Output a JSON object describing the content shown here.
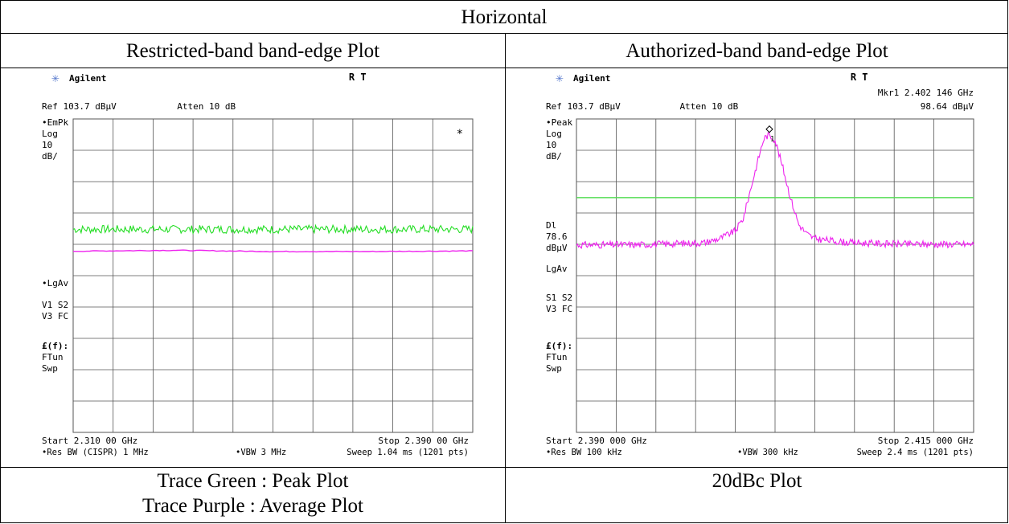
{
  "table": {
    "title": "Horizontal",
    "left_header": "Restricted-band band-edge Plot",
    "right_header": "Authorized-band band-edge Plot",
    "left_footer_line1": "Trace Green : Peak Plot",
    "left_footer_line2": "Trace Purple : Average Plot",
    "right_footer": "20dBc Plot"
  },
  "colors": {
    "peak_trace": "#22dd22",
    "avg_trace": "#ee22ee",
    "display_line": "#55dd55",
    "grid": "#555555",
    "logo_star": "#5577cc"
  },
  "left_plot": {
    "brand": "Agilent",
    "status": "R   T",
    "ref": "Ref 103.7 dBµV",
    "atten": "Atten 10 dB",
    "marker_line1": "",
    "marker_line2": "",
    "side_labels": [
      "•EmPk",
      "Log",
      "10",
      "dB/",
      "•LgAv",
      "V1  S2",
      "V3  FC",
      "£(f):",
      "FTun",
      "Swp"
    ],
    "start": "Start 2.310 00 GHz",
    "stop": "Stop 2.390 00 GHz",
    "res_bw": "•Res BW (CISPR) 1 MHz",
    "vbw": "•VBW 3 MHz",
    "sweep": "Sweep 1.04 ms (1201 pts)",
    "asterisk": "*"
  },
  "right_plot": {
    "brand": "Agilent",
    "status": "R   T",
    "ref": "Ref 103.7 dBµV",
    "atten": "Atten 10 dB",
    "marker_line1": "Mkr1  2.402 146 GHz",
    "marker_line2": "98.64 dBµV",
    "side_labels": [
      "•Peak",
      "Log",
      "10",
      "dB/",
      "Dl",
      "78.6",
      "dBµV",
      "LgAv",
      "S1  S2",
      "V3  FC",
      "£(f):",
      "FTun",
      "Swp"
    ],
    "start": "Start 2.390 000 GHz",
    "stop": "Stop 2.415 000 GHz",
    "res_bw": "•Res BW 100 kHz",
    "vbw": "•VBW 300 kHz",
    "sweep": "Sweep 2.4 ms (1201 pts)",
    "marker_label": "1"
  },
  "chart_data": [
    {
      "type": "line",
      "ref_level_dbuv": 103.7,
      "scale_db_per_div": 10,
      "ylim": [
        3.7,
        103.7
      ],
      "xlim_ghz": [
        2.31,
        2.39
      ],
      "grid": true,
      "series": [
        {
          "name": "Peak",
          "values": [
            [
              2.31,
              68.5
            ],
            [
              2.33,
              68.5
            ],
            [
              2.35,
              68.5
            ],
            [
              2.37,
              68.5
            ],
            [
              2.39,
              68.5
            ]
          ]
        },
        {
          "name": "Average",
          "values": [
            [
              2.31,
              61.5
            ],
            [
              2.33,
              61.8
            ],
            [
              2.35,
              61.4
            ],
            [
              2.37,
              61.4
            ],
            [
              2.39,
              61.6
            ]
          ]
        }
      ]
    },
    {
      "type": "line",
      "ref_level_dbuv": 103.7,
      "scale_db_per_div": 10,
      "ylim": [
        3.7,
        103.7
      ],
      "xlim_ghz": [
        2.39,
        2.415
      ],
      "grid": true,
      "display_line_dbuv": 78.6,
      "marker": {
        "x_ghz": 2.402146,
        "y_dbuv": 98.64
      },
      "series": [
        {
          "name": "Peak",
          "values": [
            [
              2.39,
              63.5
            ],
            [
              2.394,
              63.6
            ],
            [
              2.398,
              64.2
            ],
            [
              2.399,
              65.5
            ],
            [
              2.4,
              68.0
            ],
            [
              2.4005,
              72.0
            ],
            [
              2.401,
              82.0
            ],
            [
              2.4015,
              92.0
            ],
            [
              2.4018,
              97.5
            ],
            [
              2.4021,
              98.6
            ],
            [
              2.4025,
              97.0
            ],
            [
              2.403,
              88.0
            ],
            [
              2.4035,
              78.0
            ],
            [
              2.404,
              70.0
            ],
            [
              2.4045,
              67.0
            ],
            [
              2.405,
              65.5
            ],
            [
              2.407,
              64.3
            ],
            [
              2.41,
              63.8
            ],
            [
              2.415,
              63.7
            ]
          ]
        }
      ]
    }
  ]
}
